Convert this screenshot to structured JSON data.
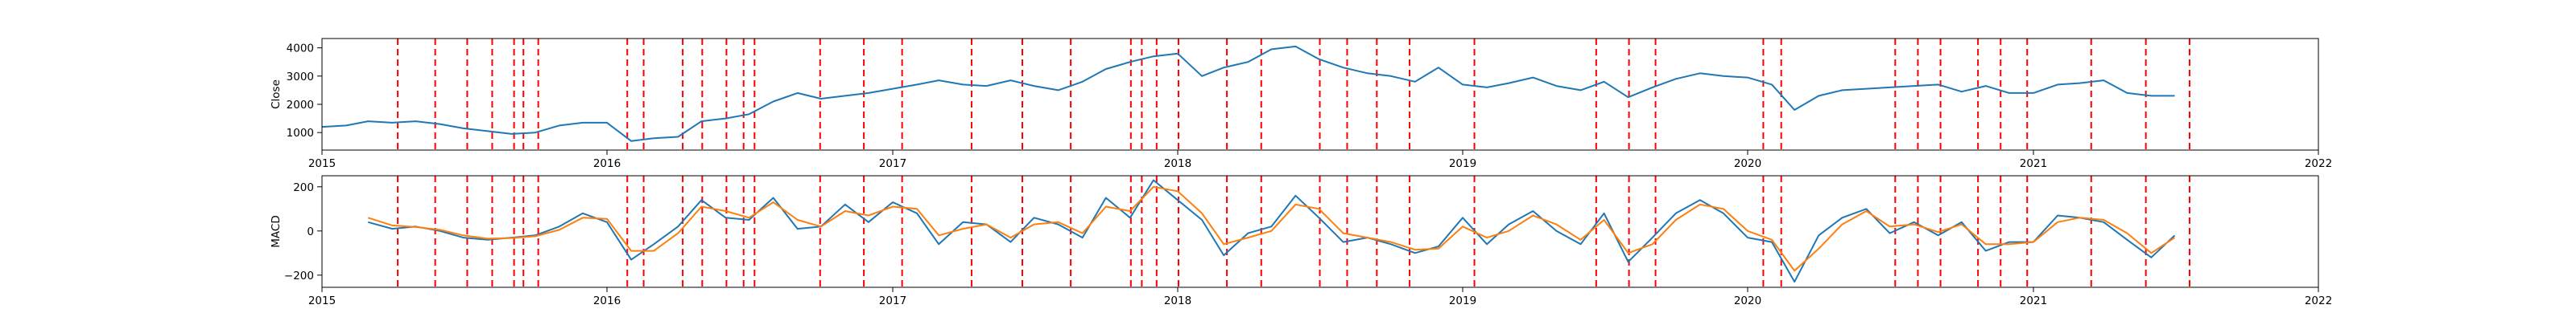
{
  "chart_data": [
    {
      "type": "line",
      "panel": "top",
      "ylabel": "Close",
      "xlim": [
        "2015-01-01",
        "2022-01-01"
      ],
      "ylim": [
        380,
        4330
      ],
      "xticks": [
        "2015",
        "2016",
        "2017",
        "2018",
        "2019",
        "2020",
        "2021",
        "2022"
      ],
      "yticks": [
        1000,
        2000,
        3000,
        4000
      ],
      "grid": false,
      "line_color": "#1f77b4",
      "series": [
        {
          "x": [
            "2015-01-01",
            "2015-02-01",
            "2015-03-01",
            "2015-04-01",
            "2015-05-01",
            "2015-06-01",
            "2015-07-01",
            "2015-08-01",
            "2015-09-01",
            "2015-10-01",
            "2015-11-01",
            "2015-12-01",
            "2016-01-01",
            "2016-02-01",
            "2016-03-01",
            "2016-04-01",
            "2016-05-01",
            "2016-06-01",
            "2016-07-01",
            "2016-08-01",
            "2016-09-01",
            "2016-10-01",
            "2016-11-01",
            "2016-12-01",
            "2017-01-01",
            "2017-02-01",
            "2017-03-01",
            "2017-04-01",
            "2017-05-01",
            "2017-06-01",
            "2017-07-01",
            "2017-08-01",
            "2017-09-01",
            "2017-10-01",
            "2017-11-01",
            "2017-12-01",
            "2018-01-01",
            "2018-02-01",
            "2018-03-01",
            "2018-04-01",
            "2018-05-01",
            "2018-06-01",
            "2018-07-01",
            "2018-08-01",
            "2018-09-01",
            "2018-10-01",
            "2018-11-01",
            "2018-12-01",
            "2019-01-01",
            "2019-02-01",
            "2019-03-01",
            "2019-04-01",
            "2019-05-01",
            "2019-06-01",
            "2019-07-01",
            "2019-08-01",
            "2019-09-01",
            "2019-10-01",
            "2019-11-01",
            "2019-12-01",
            "2020-01-01",
            "2020-02-01",
            "2020-03-01",
            "2020-04-01",
            "2020-05-01",
            "2020-06-01",
            "2020-07-01",
            "2020-08-01",
            "2020-09-01",
            "2020-10-01",
            "2020-11-01",
            "2020-12-01",
            "2021-01-01",
            "2021-02-01",
            "2021-03-01",
            "2021-04-01",
            "2021-05-01",
            "2021-06-01",
            "2021-07-01"
          ],
          "values": [
            1200,
            1250,
            1400,
            1350,
            1400,
            1300,
            1150,
            1050,
            950,
            1000,
            1250,
            1350,
            1350,
            700,
            800,
            850,
            1400,
            1500,
            1650,
            2100,
            2400,
            2200,
            2300,
            2400,
            2550,
            2700,
            2850,
            2700,
            2650,
            2850,
            2650,
            2500,
            2800,
            3250,
            3500,
            3700,
            3800,
            3000,
            3300,
            3500,
            3950,
            4050,
            3600,
            3300,
            3100,
            3000,
            2800,
            3300,
            2700,
            2600,
            2750,
            2950,
            2650,
            2500,
            2800,
            2250,
            2600,
            2900,
            3100,
            3000,
            2950,
            2700,
            1800,
            2300,
            2500,
            2550,
            2600,
            2650,
            2700,
            2450,
            2650,
            2400,
            2400,
            2700,
            2750,
            2850,
            2400,
            2300,
            2300
          ]
        }
      ]
    },
    {
      "type": "line",
      "panel": "bottom",
      "ylabel": "MACD",
      "xlim": [
        "2015-01-01",
        "2022-01-01"
      ],
      "ylim": [
        -255,
        250
      ],
      "xticks": [
        "2015",
        "2016",
        "2017",
        "2018",
        "2019",
        "2020",
        "2021",
        "2022"
      ],
      "yticks": [
        -200,
        0,
        200
      ],
      "grid": false,
      "series": [
        {
          "color": "#1f77b4",
          "x": [
            "2015-03-01",
            "2015-04-01",
            "2015-05-01",
            "2015-06-01",
            "2015-07-01",
            "2015-08-01",
            "2015-09-01",
            "2015-10-01",
            "2015-11-01",
            "2015-12-01",
            "2016-01-01",
            "2016-02-01",
            "2016-03-01",
            "2016-04-01",
            "2016-05-01",
            "2016-06-01",
            "2016-07-01",
            "2016-08-01",
            "2016-09-01",
            "2016-10-01",
            "2016-11-01",
            "2016-12-01",
            "2017-01-01",
            "2017-02-01",
            "2017-03-01",
            "2017-04-01",
            "2017-05-01",
            "2017-06-01",
            "2017-07-01",
            "2017-08-01",
            "2017-09-01",
            "2017-10-01",
            "2017-11-01",
            "2017-12-01",
            "2018-01-01",
            "2018-02-01",
            "2018-03-01",
            "2018-04-01",
            "2018-05-01",
            "2018-06-01",
            "2018-07-01",
            "2018-08-01",
            "2018-09-01",
            "2018-10-01",
            "2018-11-01",
            "2018-12-01",
            "2019-01-01",
            "2019-02-01",
            "2019-03-01",
            "2019-04-01",
            "2019-05-01",
            "2019-06-01",
            "2019-07-01",
            "2019-08-01",
            "2019-09-01",
            "2019-10-01",
            "2019-11-01",
            "2019-12-01",
            "2020-01-01",
            "2020-02-01",
            "2020-03-01",
            "2020-04-01",
            "2020-05-01",
            "2020-06-01",
            "2020-07-01",
            "2020-08-01",
            "2020-09-01",
            "2020-10-01",
            "2020-11-01",
            "2020-12-01",
            "2021-01-01",
            "2021-02-01",
            "2021-03-01",
            "2021-04-01",
            "2021-05-01",
            "2021-06-01",
            "2021-07-01"
          ],
          "values": [
            40,
            10,
            20,
            0,
            -30,
            -40,
            -30,
            -20,
            20,
            80,
            40,
            -130,
            -60,
            20,
            140,
            60,
            50,
            150,
            10,
            20,
            120,
            40,
            130,
            80,
            -60,
            40,
            30,
            -50,
            60,
            30,
            -30,
            150,
            60,
            230,
            140,
            50,
            -110,
            -10,
            20,
            160,
            60,
            -50,
            -30,
            -60,
            -100,
            -70,
            60,
            -60,
            30,
            90,
            0,
            -60,
            80,
            -140,
            -30,
            80,
            140,
            80,
            -30,
            -50,
            -230,
            -20,
            60,
            100,
            -10,
            40,
            -20,
            40,
            -90,
            -50,
            -50,
            70,
            60,
            40,
            -40,
            -120,
            -20
          ]
        },
        {
          "color": "#ff7f0e",
          "x": [
            "2015-03-01",
            "2015-04-01",
            "2015-05-01",
            "2015-06-01",
            "2015-07-01",
            "2015-08-01",
            "2015-09-01",
            "2015-10-01",
            "2015-11-01",
            "2015-12-01",
            "2016-01-01",
            "2016-02-01",
            "2016-03-01",
            "2016-04-01",
            "2016-05-01",
            "2016-06-01",
            "2016-07-01",
            "2016-08-01",
            "2016-09-01",
            "2016-10-01",
            "2016-11-01",
            "2016-12-01",
            "2017-01-01",
            "2017-02-01",
            "2017-03-01",
            "2017-04-01",
            "2017-05-01",
            "2017-06-01",
            "2017-07-01",
            "2017-08-01",
            "2017-09-01",
            "2017-10-01",
            "2017-11-01",
            "2017-12-01",
            "2018-01-01",
            "2018-02-01",
            "2018-03-01",
            "2018-04-01",
            "2018-05-01",
            "2018-06-01",
            "2018-07-01",
            "2018-08-01",
            "2018-09-01",
            "2018-10-01",
            "2018-11-01",
            "2018-12-01",
            "2019-01-01",
            "2019-02-01",
            "2019-03-01",
            "2019-04-01",
            "2019-05-01",
            "2019-06-01",
            "2019-07-01",
            "2019-08-01",
            "2019-09-01",
            "2019-10-01",
            "2019-11-01",
            "2019-12-01",
            "2020-01-01",
            "2020-02-01",
            "2020-03-01",
            "2020-04-01",
            "2020-05-01",
            "2020-06-01",
            "2020-07-01",
            "2020-08-01",
            "2020-09-01",
            "2020-10-01",
            "2020-11-01",
            "2020-12-01",
            "2021-01-01",
            "2021-02-01",
            "2021-03-01",
            "2021-04-01",
            "2021-05-01",
            "2021-06-01",
            "2021-07-01"
          ],
          "values": [
            60,
            25,
            18,
            5,
            -20,
            -35,
            -32,
            -24,
            5,
            60,
            55,
            -90,
            -90,
            -10,
            110,
            90,
            60,
            130,
            50,
            20,
            90,
            70,
            110,
            100,
            -20,
            10,
            30,
            -30,
            30,
            40,
            -10,
            110,
            90,
            200,
            180,
            80,
            -60,
            -30,
            0,
            120,
            100,
            -10,
            -30,
            -50,
            -85,
            -80,
            20,
            -30,
            0,
            70,
            30,
            -40,
            50,
            -100,
            -60,
            50,
            120,
            100,
            0,
            -40,
            -180,
            -80,
            30,
            90,
            20,
            30,
            -5,
            30,
            -60,
            -60,
            -50,
            40,
            60,
            50,
            -10,
            -100,
            -30
          ]
        }
      ]
    },
    {
      "type": "vlines",
      "panel": "both",
      "color": "#ff0000",
      "style": "dashed",
      "x": [
        "2015-04-08",
        "2015-05-26",
        "2015-07-06",
        "2015-08-07",
        "2015-09-04",
        "2015-09-16",
        "2015-10-05",
        "2016-01-27",
        "2016-02-17",
        "2016-04-07",
        "2016-05-02",
        "2016-06-02",
        "2016-06-24",
        "2016-07-08",
        "2016-09-30",
        "2016-11-25",
        "2017-01-13",
        "2017-04-12",
        "2017-06-16",
        "2017-08-17",
        "2017-11-02",
        "2017-11-16",
        "2017-12-05",
        "2018-01-02",
        "2018-03-05",
        "2018-04-18",
        "2018-07-02",
        "2018-08-06",
        "2018-09-13",
        "2018-10-25",
        "2019-01-16",
        "2019-06-21",
        "2019-08-02",
        "2019-09-05",
        "2020-01-21",
        "2020-02-13",
        "2020-07-08",
        "2020-08-06",
        "2020-09-04",
        "2020-10-22",
        "2020-11-20",
        "2020-12-24",
        "2021-03-16",
        "2021-05-25",
        "2021-07-20"
      ]
    }
  ]
}
